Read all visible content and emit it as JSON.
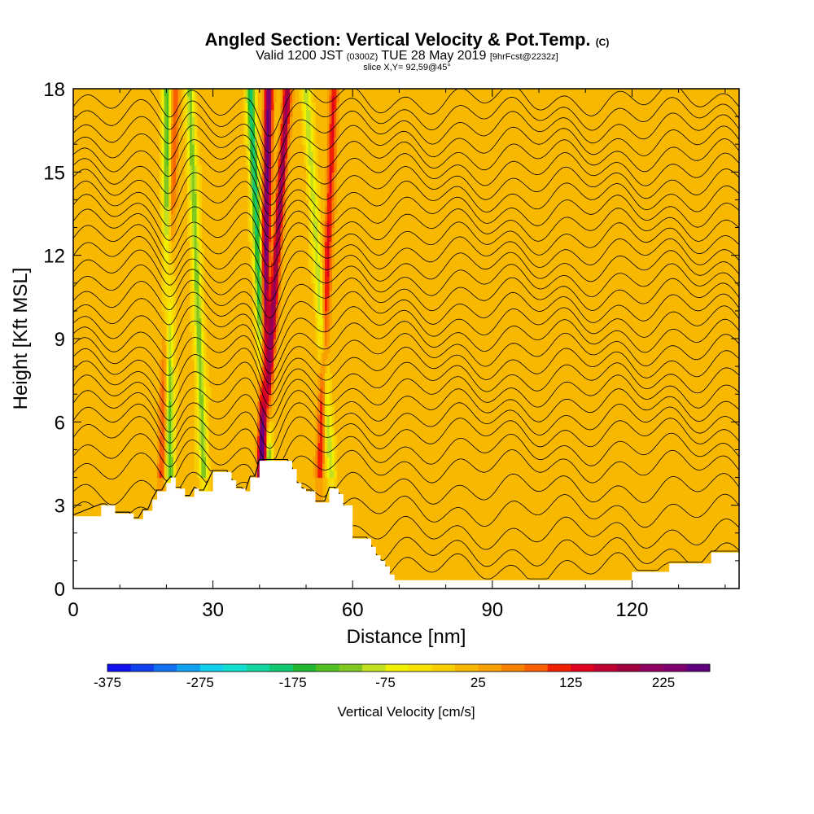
{
  "header": {
    "title_main": "Angled Section: Vertical Velocity & Pot.Temp.",
    "title_copy": "(C)",
    "valid_pre": "Valid 1200 JST",
    "valid_utc": "(0300Z)",
    "valid_date": "TUE 28 May 2019",
    "valid_fcst": "[9hrFcst@2232z]",
    "slice": "slice X,Y= 92,59@45°"
  },
  "chart_data": {
    "type": "heatmap",
    "title": "Angled Section: Vertical Velocity & Pot.Temp.",
    "xlabel": "Distance [nm]",
    "ylabel": "Height [Kft MSL]",
    "xlim": [
      0,
      143
    ],
    "ylim": [
      0,
      18
    ],
    "x_ticks": [
      0,
      30,
      60,
      90,
      120
    ],
    "y_ticks": [
      0,
      3,
      6,
      9,
      12,
      15,
      18
    ],
    "x_tick_labels": [
      "0",
      "30",
      "60",
      "90",
      "120"
    ],
    "y_tick_labels": [
      "0",
      "3",
      "6",
      "9",
      "12",
      "15",
      "18"
    ],
    "colorbar": {
      "label": "Vertical Velocity [cm/s]",
      "min": -375,
      "max": 275,
      "step": 25,
      "tick_labels": [
        "-375",
        "-275",
        "-175",
        "-75",
        "25",
        "125",
        "225"
      ],
      "tick_values": [
        -375,
        -275,
        -175,
        -75,
        25,
        125,
        225
      ],
      "colors": [
        "#1010f0",
        "#1040f0",
        "#1070f0",
        "#10a0f0",
        "#10d0f0",
        "#10e0d0",
        "#10d8a0",
        "#10c870",
        "#20b830",
        "#50c020",
        "#80c820",
        "#c0e020",
        "#f0f000",
        "#f8e000",
        "#f8d000",
        "#f8b800",
        "#f8a000",
        "#f88000",
        "#f86000",
        "#f02000",
        "#e00020",
        "#c00030",
        "#a00040",
        "#900060",
        "#800070",
        "#600080"
      ]
    },
    "terrain_profile": {
      "x": [
        0,
        6,
        7,
        9,
        10,
        11,
        12,
        13,
        14,
        15,
        16,
        17,
        18,
        19,
        20,
        21,
        22,
        23,
        24,
        25,
        26,
        27,
        28,
        30,
        33,
        34,
        35,
        36,
        37,
        38,
        39,
        40,
        41,
        42,
        43,
        44,
        45,
        46,
        47,
        48,
        49,
        50,
        51,
        52,
        53,
        54,
        55,
        56,
        57,
        58,
        60,
        63,
        64,
        65,
        66,
        67,
        68,
        69,
        70,
        72,
        80,
        90,
        100,
        110,
        113,
        120,
        127,
        128,
        130,
        135,
        137,
        140,
        143
      ],
      "height_kft": [
        2.6,
        3.0,
        3.0,
        2.7,
        2.7,
        2.7,
        2.7,
        2.5,
        2.5,
        2.8,
        2.8,
        3.2,
        3.5,
        3.5,
        3.8,
        4.0,
        3.6,
        3.6,
        3.3,
        3.3,
        3.6,
        3.5,
        3.5,
        4.2,
        4.2,
        3.9,
        3.6,
        3.6,
        3.5,
        4.0,
        4.0,
        4.6,
        4.6,
        4.6,
        4.6,
        4.6,
        4.6,
        4.6,
        4.3,
        3.8,
        3.6,
        3.5,
        3.5,
        3.1,
        3.1,
        3.1,
        3.6,
        3.6,
        3.4,
        3.0,
        1.8,
        1.8,
        1.5,
        1.2,
        1.0,
        0.8,
        0.5,
        0.3,
        0.3,
        0.3,
        0.3,
        0.3,
        0.3,
        0.3,
        0.3,
        0.6,
        0.6,
        0.9,
        0.9,
        0.9,
        1.3,
        1.3,
        1.3
      ]
    },
    "updraft_columns": [
      {
        "x_low": 40,
        "x_high": 42,
        "peak_cm_s": 250
      },
      {
        "x_low": 39,
        "x_high": 46,
        "peak_cm_s": 200
      },
      {
        "x_low": 52,
        "x_high": 56,
        "peak_cm_s": 120
      },
      {
        "x_low": 18,
        "x_high": 22,
        "peak_cm_s": 100
      }
    ],
    "downdraft_columns": [
      {
        "x_low": 43,
        "x_high": 38,
        "peak_cm_s": -200
      },
      {
        "x_low": 21,
        "x_high": 20,
        "peak_cm_s": -150
      },
      {
        "x_low": 29,
        "x_high": 25,
        "peak_cm_s": -125
      },
      {
        "x_low": 57,
        "x_high": 50,
        "peak_cm_s": -100
      }
    ],
    "isentrope_levels_kft": [
      0.7,
      1.3,
      2.0,
      2.8,
      3.6,
      4.4,
      5.0,
      5.6,
      6.1,
      6.6,
      7.1,
      7.6,
      8.1,
      8.6,
      9.1,
      9.6,
      10.1,
      10.6,
      11.1,
      11.6,
      12.1,
      12.6,
      13.1,
      13.6,
      14.1,
      14.6,
      15.1,
      15.6,
      16.1,
      16.6,
      17.1,
      17.6
    ]
  }
}
